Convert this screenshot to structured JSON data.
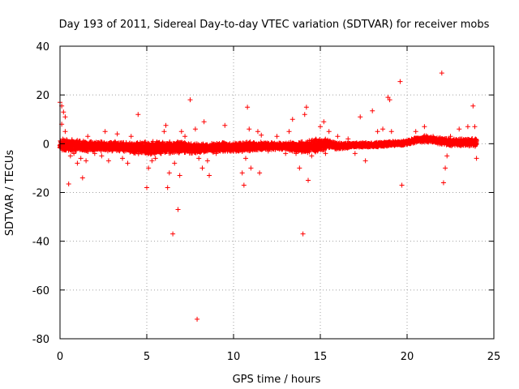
{
  "chart_data": {
    "type": "scatter",
    "title": "Day 193 of 2011, Sidereal Day-to-day VTEC variation (SDTVAR) for receiver mobs",
    "xlabel": "GPS time / hours",
    "ylabel": "SDTVAR / TECUs",
    "xlim": [
      0,
      25
    ],
    "ylim": [
      -80,
      40
    ],
    "xticks": [
      0,
      5,
      10,
      15,
      20,
      25
    ],
    "yticks": [
      -80,
      -60,
      -40,
      -20,
      0,
      20,
      40
    ],
    "grid": true,
    "marker": "plus",
    "color": "#ff0000",
    "band": {
      "x": [
        0.0,
        1.0,
        2.0,
        3.0,
        4.0,
        5.0,
        6.0,
        7.0,
        8.0,
        9.0,
        10.0,
        11.0,
        12.0,
        13.0,
        14.0,
        15.0,
        15.5,
        16.0,
        17.0,
        18.0,
        19.0,
        19.5,
        20.0,
        20.5,
        21.0,
        21.5,
        22.0,
        22.5,
        23.0,
        23.5,
        24.0
      ],
      "center": [
        -0.5,
        -1.0,
        -1.0,
        -1.0,
        -1.5,
        -2.0,
        -1.5,
        -1.5,
        -2.0,
        -1.5,
        -1.5,
        -1.0,
        -1.0,
        -1.0,
        -1.5,
        -0.5,
        0.0,
        -1.0,
        -0.5,
        -0.5,
        0.0,
        0.0,
        0.5,
        1.5,
        2.0,
        1.5,
        1.0,
        0.5,
        0.5,
        0.5,
        0.5
      ],
      "half_width": [
        3.0,
        2.5,
        2.0,
        2.0,
        2.0,
        3.0,
        2.5,
        2.5,
        2.0,
        2.0,
        2.0,
        2.0,
        1.5,
        1.5,
        2.5,
        3.0,
        2.0,
        1.5,
        1.0,
        1.0,
        1.0,
        1.0,
        1.0,
        1.2,
        1.5,
        1.2,
        1.5,
        1.5,
        1.5,
        1.5,
        2.0
      ]
    },
    "outliers": [
      [
        0.0,
        17
      ],
      [
        0.1,
        15.5
      ],
      [
        0.2,
        13
      ],
      [
        0.3,
        11
      ],
      [
        0.1,
        8
      ],
      [
        0.3,
        5
      ],
      [
        0.5,
        -16.5
      ],
      [
        0.6,
        -5
      ],
      [
        0.8,
        -4
      ],
      [
        1.0,
        -8
      ],
      [
        1.2,
        -6
      ],
      [
        1.3,
        -14
      ],
      [
        1.5,
        -7
      ],
      [
        1.6,
        3
      ],
      [
        2.0,
        -4
      ],
      [
        2.4,
        -5
      ],
      [
        2.6,
        5
      ],
      [
        2.8,
        -7
      ],
      [
        3.0,
        -3
      ],
      [
        3.3,
        4
      ],
      [
        3.6,
        -6
      ],
      [
        3.9,
        -8
      ],
      [
        4.1,
        3
      ],
      [
        4.5,
        12
      ],
      [
        4.8,
        -3
      ],
      [
        5.0,
        -18
      ],
      [
        5.1,
        -10
      ],
      [
        5.3,
        -7
      ],
      [
        5.5,
        -6
      ],
      [
        5.8,
        -4
      ],
      [
        6.0,
        5
      ],
      [
        6.1,
        7.5
      ],
      [
        6.2,
        -18
      ],
      [
        6.3,
        -12
      ],
      [
        6.5,
        -37
      ],
      [
        6.6,
        -8
      ],
      [
        6.8,
        -27
      ],
      [
        6.9,
        -13
      ],
      [
        7.0,
        5
      ],
      [
        7.2,
        3
      ],
      [
        7.5,
        18
      ],
      [
        7.8,
        6
      ],
      [
        7.9,
        -72
      ],
      [
        8.0,
        -6
      ],
      [
        8.2,
        -10
      ],
      [
        8.3,
        9
      ],
      [
        8.5,
        -7
      ],
      [
        8.6,
        -13
      ],
      [
        9.0,
        -4
      ],
      [
        9.5,
        7.5
      ],
      [
        9.8,
        -3
      ],
      [
        10.5,
        -12
      ],
      [
        10.6,
        -17
      ],
      [
        10.7,
        -6
      ],
      [
        10.8,
        15
      ],
      [
        10.9,
        6
      ],
      [
        11.0,
        -10
      ],
      [
        11.4,
        5
      ],
      [
        11.5,
        -12
      ],
      [
        11.6,
        3.5
      ],
      [
        12.0,
        -3
      ],
      [
        12.5,
        3
      ],
      [
        13.0,
        -4
      ],
      [
        13.2,
        5
      ],
      [
        13.4,
        10
      ],
      [
        13.6,
        -4
      ],
      [
        13.8,
        -10
      ],
      [
        14.0,
        -37
      ],
      [
        14.1,
        12
      ],
      [
        14.2,
        15
      ],
      [
        14.3,
        -15
      ],
      [
        14.5,
        -5
      ],
      [
        15.0,
        7
      ],
      [
        15.2,
        9
      ],
      [
        15.3,
        -4
      ],
      [
        15.5,
        5
      ],
      [
        16.0,
        3
      ],
      [
        16.6,
        2
      ],
      [
        17.0,
        -4
      ],
      [
        17.3,
        11
      ],
      [
        17.6,
        -7
      ],
      [
        18.0,
        13.5
      ],
      [
        18.3,
        5
      ],
      [
        18.6,
        6
      ],
      [
        18.9,
        19
      ],
      [
        19.0,
        18
      ],
      [
        19.1,
        5
      ],
      [
        19.6,
        25.5
      ],
      [
        19.7,
        -17
      ],
      [
        20.5,
        5
      ],
      [
        21.0,
        7
      ],
      [
        21.5,
        3
      ],
      [
        22.0,
        29
      ],
      [
        22.1,
        -16
      ],
      [
        22.2,
        -10
      ],
      [
        22.3,
        -5
      ],
      [
        22.5,
        3
      ],
      [
        23.0,
        6
      ],
      [
        23.5,
        7
      ],
      [
        23.8,
        15.5
      ],
      [
        23.9,
        7
      ],
      [
        24.0,
        -6
      ]
    ]
  }
}
